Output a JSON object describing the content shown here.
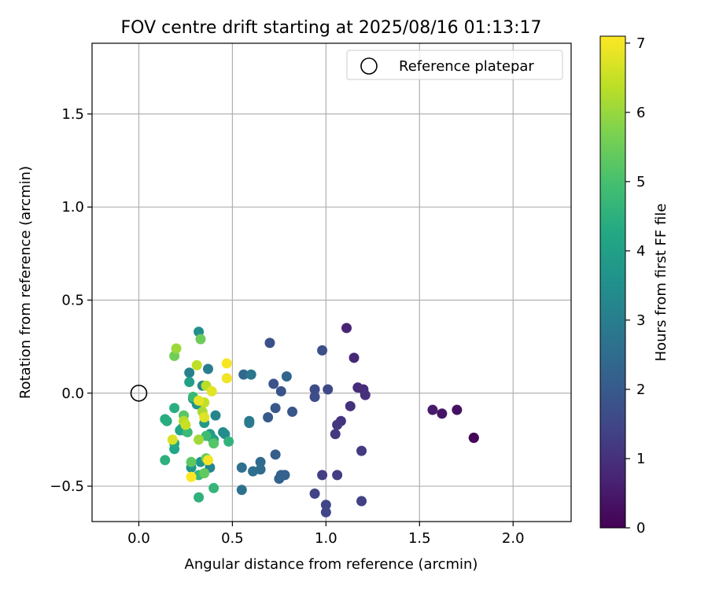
{
  "chart_data": {
    "type": "scatter",
    "title": "FOV centre drift starting at 2025/08/16 01:13:17",
    "xlabel": "Angular distance from reference (arcmin)",
    "ylabel": "Rotation from reference (arcmin)",
    "xlim": [
      -0.25,
      2.31
    ],
    "ylim": [
      -0.69,
      1.88
    ],
    "xticks": [
      0.0,
      0.5,
      1.0,
      1.5,
      2.0
    ],
    "xtick_labels": [
      "0.0",
      "0.5",
      "1.0",
      "1.5",
      "2.0"
    ],
    "yticks": [
      -0.5,
      0.0,
      0.5,
      1.0,
      1.5
    ],
    "ytick_labels": [
      "−0.5",
      "0.0",
      "0.5",
      "1.0",
      "1.5"
    ],
    "grid": true,
    "legend": {
      "placement": "top-right",
      "entries": [
        "Reference platepar"
      ]
    },
    "reference_point": {
      "label": "Reference platepar",
      "x": 0.0,
      "y": 0.0,
      "marker": "open-circle"
    },
    "colorbar": {
      "label": "Hours from first FF file",
      "colormap": "viridis",
      "range": [
        0,
        7.1
      ],
      "ticks": [
        0,
        1,
        2,
        3,
        4,
        5,
        6,
        7
      ],
      "tick_labels": [
        "0",
        "1",
        "2",
        "3",
        "4",
        "5",
        "6",
        "7"
      ]
    },
    "points": [
      {
        "x": 1.79,
        "y": -0.24,
        "c": 0.05
      },
      {
        "x": 1.79,
        "y": -0.24,
        "c": 0.1
      },
      {
        "x": 1.7,
        "y": -0.09,
        "c": 0.3
      },
      {
        "x": 1.62,
        "y": -0.11,
        "c": 0.4
      },
      {
        "x": 1.57,
        "y": -0.09,
        "c": 0.5
      },
      {
        "x": 1.11,
        "y": 0.35,
        "c": 0.7
      },
      {
        "x": 1.15,
        "y": 0.19,
        "c": 0.8
      },
      {
        "x": 1.17,
        "y": 0.03,
        "c": 0.85
      },
      {
        "x": 1.2,
        "y": 0.02,
        "c": 0.9
      },
      {
        "x": 1.21,
        "y": -0.01,
        "c": 0.95
      },
      {
        "x": 1.13,
        "y": -0.07,
        "c": 1.0
      },
      {
        "x": 1.08,
        "y": -0.15,
        "c": 1.05
      },
      {
        "x": 1.06,
        "y": -0.17,
        "c": 1.1
      },
      {
        "x": 1.05,
        "y": -0.22,
        "c": 1.15
      },
      {
        "x": 1.19,
        "y": -0.31,
        "c": 1.2
      },
      {
        "x": 1.06,
        "y": -0.44,
        "c": 1.25
      },
      {
        "x": 0.98,
        "y": -0.44,
        "c": 1.3
      },
      {
        "x": 1.19,
        "y": -0.58,
        "c": 1.35
      },
      {
        "x": 0.94,
        "y": -0.54,
        "c": 1.4
      },
      {
        "x": 1.0,
        "y": -0.6,
        "c": 1.45
      },
      {
        "x": 1.0,
        "y": -0.64,
        "c": 1.5
      },
      {
        "x": 1.01,
        "y": 0.02,
        "c": 1.55
      },
      {
        "x": 0.94,
        "y": 0.02,
        "c": 1.6
      },
      {
        "x": 0.94,
        "y": -0.02,
        "c": 1.65
      },
      {
        "x": 0.98,
        "y": 0.23,
        "c": 1.7
      },
      {
        "x": 0.7,
        "y": 0.27,
        "c": 1.75
      },
      {
        "x": 0.72,
        "y": 0.05,
        "c": 1.8
      },
      {
        "x": 0.76,
        "y": 0.01,
        "c": 1.85
      },
      {
        "x": 0.82,
        "y": -0.1,
        "c": 1.9
      },
      {
        "x": 0.73,
        "y": -0.08,
        "c": 1.95
      },
      {
        "x": 0.69,
        "y": -0.13,
        "c": 2.0
      },
      {
        "x": 0.73,
        "y": -0.33,
        "c": 2.1
      },
      {
        "x": 0.76,
        "y": -0.44,
        "c": 2.15
      },
      {
        "x": 0.78,
        "y": -0.44,
        "c": 2.2
      },
      {
        "x": 0.75,
        "y": -0.46,
        "c": 2.25
      },
      {
        "x": 0.79,
        "y": 0.09,
        "c": 2.3
      },
      {
        "x": 0.56,
        "y": 0.1,
        "c": 2.4
      },
      {
        "x": 0.65,
        "y": -0.37,
        "c": 2.45
      },
      {
        "x": 0.65,
        "y": -0.41,
        "c": 2.5
      },
      {
        "x": 0.61,
        "y": -0.42,
        "c": 2.55
      },
      {
        "x": 0.55,
        "y": -0.4,
        "c": 2.6
      },
      {
        "x": 0.55,
        "y": -0.52,
        "c": 2.65
      },
      {
        "x": 0.6,
        "y": 0.1,
        "c": 2.8
      },
      {
        "x": 0.59,
        "y": -0.15,
        "c": 2.85
      },
      {
        "x": 0.59,
        "y": -0.16,
        "c": 2.9
      },
      {
        "x": 0.37,
        "y": 0.13,
        "c": 3.0
      },
      {
        "x": 0.27,
        "y": 0.11,
        "c": 3.1
      },
      {
        "x": 0.41,
        "y": -0.12,
        "c": 3.2
      },
      {
        "x": 0.38,
        "y": -0.4,
        "c": 3.25
      },
      {
        "x": 0.34,
        "y": 0.04,
        "c": 3.3
      },
      {
        "x": 0.45,
        "y": -0.21,
        "c": 3.35
      },
      {
        "x": 0.46,
        "y": -0.22,
        "c": 3.4
      },
      {
        "x": 0.32,
        "y": 0.33,
        "c": 3.5
      },
      {
        "x": 0.29,
        "y": -0.03,
        "c": 3.6
      },
      {
        "x": 0.31,
        "y": -0.06,
        "c": 3.65
      },
      {
        "x": 0.28,
        "y": -0.4,
        "c": 3.7
      },
      {
        "x": 0.33,
        "y": -0.37,
        "c": 3.75
      },
      {
        "x": 0.35,
        "y": -0.16,
        "c": 3.8
      },
      {
        "x": 0.38,
        "y": -0.22,
        "c": 3.85
      },
      {
        "x": 0.39,
        "y": -0.24,
        "c": 3.9
      },
      {
        "x": 0.4,
        "y": -0.25,
        "c": 3.95
      },
      {
        "x": 0.27,
        "y": 0.06,
        "c": 4.0
      },
      {
        "x": 0.24,
        "y": -0.2,
        "c": 4.05
      },
      {
        "x": 0.23,
        "y": -0.19,
        "c": 4.1
      },
      {
        "x": 0.22,
        "y": -0.2,
        "c": 4.15
      },
      {
        "x": 0.19,
        "y": -0.3,
        "c": 4.2
      },
      {
        "x": 0.19,
        "y": -0.27,
        "c": 4.3
      },
      {
        "x": 0.15,
        "y": -0.15,
        "c": 4.35
      },
      {
        "x": 0.14,
        "y": -0.14,
        "c": 4.4
      },
      {
        "x": 0.19,
        "y": -0.08,
        "c": 4.45
      },
      {
        "x": 0.14,
        "y": -0.36,
        "c": 4.5
      },
      {
        "x": 0.32,
        "y": -0.56,
        "c": 4.55
      },
      {
        "x": 0.48,
        "y": -0.26,
        "c": 4.6
      },
      {
        "x": 0.4,
        "y": -0.51,
        "c": 4.65
      },
      {
        "x": 0.32,
        "y": -0.44,
        "c": 4.7
      },
      {
        "x": 0.29,
        "y": -0.02,
        "c": 4.75
      },
      {
        "x": 0.26,
        "y": -0.21,
        "c": 4.8
      },
      {
        "x": 0.36,
        "y": -0.23,
        "c": 4.85
      },
      {
        "x": 0.4,
        "y": -0.27,
        "c": 5.2
      },
      {
        "x": 0.24,
        "y": -0.12,
        "c": 5.25
      },
      {
        "x": 0.28,
        "y": -0.37,
        "c": 5.3
      },
      {
        "x": 0.35,
        "y": -0.43,
        "c": 5.35
      },
      {
        "x": 0.36,
        "y": -0.35,
        "c": 5.4
      },
      {
        "x": 0.33,
        "y": 0.29,
        "c": 5.5
      },
      {
        "x": 0.19,
        "y": 0.2,
        "c": 5.55
      },
      {
        "x": 0.2,
        "y": 0.24,
        "c": 6.05
      },
      {
        "x": 0.32,
        "y": -0.25,
        "c": 6.1
      },
      {
        "x": 0.34,
        "y": -0.1,
        "c": 6.2
      },
      {
        "x": 0.24,
        "y": -0.15,
        "c": 6.3
      },
      {
        "x": 0.36,
        "y": 0.04,
        "c": 6.35
      },
      {
        "x": 0.31,
        "y": 0.15,
        "c": 6.4
      },
      {
        "x": 0.35,
        "y": -0.05,
        "c": 6.45
      },
      {
        "x": 0.25,
        "y": -0.17,
        "c": 6.5
      },
      {
        "x": 0.18,
        "y": -0.25,
        "c": 6.7
      },
      {
        "x": 0.35,
        "y": -0.13,
        "c": 6.75
      },
      {
        "x": 0.39,
        "y": 0.01,
        "c": 6.8
      },
      {
        "x": 0.32,
        "y": -0.04,
        "c": 6.85
      },
      {
        "x": 0.47,
        "y": 0.08,
        "c": 6.95
      },
      {
        "x": 0.37,
        "y": -0.36,
        "c": 7.0
      },
      {
        "x": 0.47,
        "y": 0.16,
        "c": 7.05
      },
      {
        "x": 0.28,
        "y": -0.45,
        "c": 7.1
      }
    ]
  }
}
